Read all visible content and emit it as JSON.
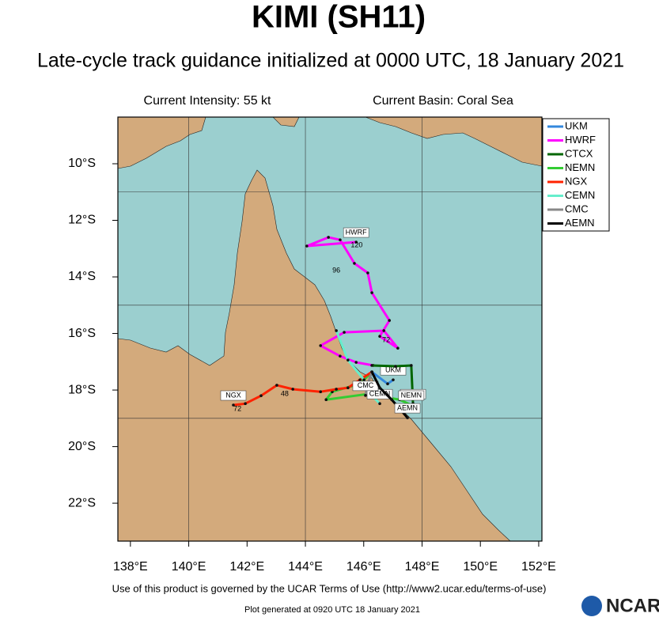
{
  "title": "KIMI (SH11)",
  "subtitle": "Late-cycle track guidance initialized at 0000 UTC, 18 January 2021",
  "current_intensity": "Current Intensity: 55 kt",
  "current_basin": "Current Basin: Coral Sea",
  "map": {
    "lon_range": [
      137.57,
      152.11
    ],
    "lat_range": [
      -8.35,
      -23.34
    ],
    "lon_ticks": [
      {
        "value": 138,
        "label": "138°E"
      },
      {
        "value": 140,
        "label": "140°E"
      },
      {
        "value": 142,
        "label": "142°E"
      },
      {
        "value": 144,
        "label": "144°E"
      },
      {
        "value": 146,
        "label": "146°E"
      },
      {
        "value": 148,
        "label": "148°E"
      },
      {
        "value": 150,
        "label": "150°E"
      },
      {
        "value": 152,
        "label": "152°E"
      }
    ],
    "lat_ticks": [
      {
        "value": -10,
        "label": "10°S"
      },
      {
        "value": -12,
        "label": "12°S"
      },
      {
        "value": -14,
        "label": "14°S"
      },
      {
        "value": -16,
        "label": "16°S"
      },
      {
        "value": -18,
        "label": "18°S"
      },
      {
        "value": -20,
        "label": "20°S"
      },
      {
        "value": -22,
        "label": "22°S"
      }
    ],
    "grid_lons": [
      140,
      144,
      148
    ],
    "grid_lats": [
      -11,
      -15,
      -19
    ]
  },
  "tracks": [
    {
      "name": "UKM",
      "color": "#3388dd",
      "lon": [
        146.28,
        146.82,
        147.01
      ],
      "lat": [
        -17.36,
        -17.78,
        -17.64
      ],
      "hour_labels": []
    },
    {
      "name": "HWRF",
      "color": "#ff00ff",
      "lon": [
        146.33,
        145.74,
        145.19,
        144.52,
        145.33,
        146.69,
        147.17,
        146.55,
        146.88,
        146.28,
        146.14,
        145.68,
        145.19,
        144.79,
        144.05,
        145.74
      ],
      "lat": [
        -17.13,
        -17.02,
        -16.8,
        -16.43,
        -15.96,
        -15.9,
        -16.52,
        -16.1,
        -15.54,
        -14.56,
        -13.86,
        -13.52,
        -12.69,
        -12.6,
        -12.91,
        -12.77
      ],
      "hour_labels": [
        {
          "text": "120",
          "lon": 145.76,
          "lat": -12.88
        },
        {
          "text": "96",
          "lon": 145.06,
          "lat": -13.78
        },
        {
          "text": "72",
          "lon": 146.77,
          "lat": -16.24
        }
      ]
    },
    {
      "name": "CTCX",
      "color": "#006600",
      "lon": [
        146.28,
        147.09,
        147.63,
        147.69
      ],
      "lat": [
        -17.13,
        -17.16,
        -17.13,
        -18.48
      ],
      "hour_labels": []
    },
    {
      "name": "NEMN",
      "color": "#33cc33",
      "lon": [
        146.28,
        145.87,
        144.92,
        144.71,
        146.14,
        147.23,
        147.63
      ],
      "lat": [
        -17.36,
        -17.78,
        -18.06,
        -18.34,
        -18.14,
        -18.34,
        -18.53
      ],
      "hour_labels": []
    },
    {
      "name": "NGX",
      "color": "#ff2200",
      "lon": [
        146.28,
        145.87,
        145.46,
        145.06,
        144.52,
        143.57,
        143.02,
        142.48,
        141.94,
        141.53
      ],
      "lat": [
        -17.36,
        -17.64,
        -17.92,
        -17.97,
        -18.06,
        -17.97,
        -17.83,
        -18.2,
        -18.48,
        -18.53
      ],
      "hour_labels": [
        {
          "text": "72",
          "lon": 141.67,
          "lat": -18.67
        },
        {
          "text": "48",
          "lon": 143.29,
          "lat": -18.14
        }
      ]
    },
    {
      "name": "CEMN",
      "color": "#66eecc",
      "lon": [
        145.06,
        145.46,
        146.01,
        146.28,
        146.55
      ],
      "lat": [
        -15.9,
        -16.94,
        -17.64,
        -18.19,
        -18.48
      ],
      "hour_labels": []
    },
    {
      "name": "CMC",
      "color": "#888888",
      "lon": [
        146.28,
        146.14,
        146.06
      ],
      "lat": [
        -17.36,
        -17.78,
        -18.19
      ],
      "hour_labels": []
    },
    {
      "name": "AEMN",
      "color": "#000000",
      "lon": [
        146.28,
        146.55,
        146.96,
        147.5
      ],
      "lat": [
        -17.36,
        -17.92,
        -18.34,
        -18.98
      ],
      "hour_labels": []
    }
  ],
  "footer": "Use of this product is governed by the UCAR Terms of Use (http://www2.ucar.edu/terms-of-use)",
  "generated": "Plot generated at 0920 UTC   18 January 2021",
  "logo": "NCAR"
}
